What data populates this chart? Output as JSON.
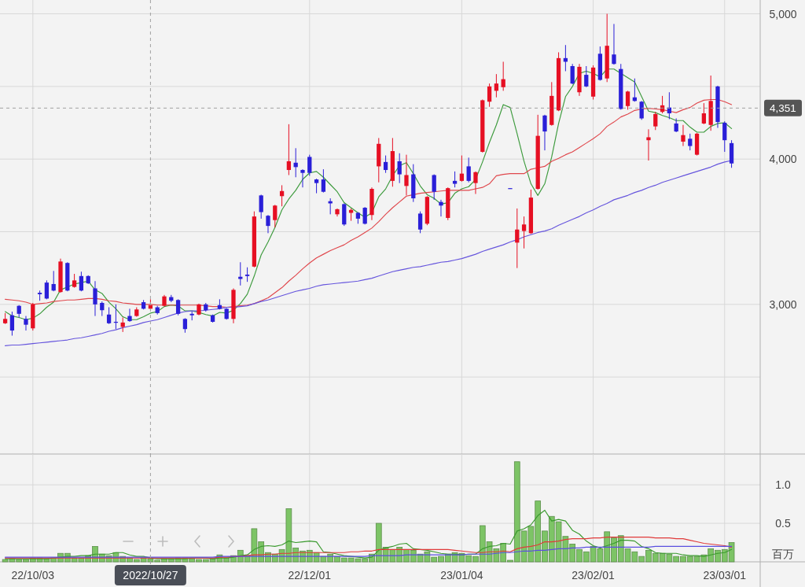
{
  "chart_data": [
    {
      "type": "candlestick",
      "categories": [
        null,
        null,
        null,
        null,
        null,
        null,
        null,
        null,
        null,
        null,
        null,
        null,
        null,
        null,
        null,
        null,
        null,
        null,
        null,
        null,
        null,
        null,
        null,
        null,
        null,
        null,
        null,
        null,
        null,
        null,
        null,
        null,
        null,
        null,
        null,
        null,
        null,
        null,
        null,
        null,
        null,
        null,
        null,
        null,
        null,
        null,
        null,
        null,
        null,
        null,
        null,
        null,
        null,
        null,
        null,
        null,
        null,
        null,
        null,
        null,
        null,
        null,
        null,
        null,
        null,
        null,
        null,
        null,
        null,
        null,
        null,
        null,
        null,
        null,
        null,
        null,
        null,
        null,
        null,
        null,
        null,
        null,
        null,
        null,
        null,
        null,
        null,
        null,
        null,
        null,
        null,
        null,
        null,
        null,
        null,
        null,
        null,
        null,
        null,
        null,
        null,
        null,
        null,
        null,
        null,
        null
      ],
      "ohlc": [
        [
          2870,
          2940,
          2865,
          2900
        ],
        [
          2925,
          2950,
          2785,
          2820
        ],
        [
          2990,
          2995,
          2910,
          2935
        ],
        [
          2900,
          2920,
          2820,
          2860
        ],
        [
          2835,
          3010,
          2820,
          3000
        ],
        [
          3080,
          3095,
          3025,
          3070
        ],
        [
          3150,
          3165,
          3035,
          3040
        ],
        [
          3140,
          3230,
          3090,
          3095
        ],
        [
          3085,
          3315,
          3080,
          3295
        ],
        [
          3285,
          3290,
          3090,
          3095
        ],
        [
          3120,
          3210,
          3115,
          3165
        ],
        [
          3195,
          3225,
          3090,
          3095
        ],
        [
          3195,
          3200,
          3140,
          3145
        ],
        [
          3110,
          3160,
          2920,
          3000
        ],
        [
          3010,
          3020,
          2920,
          2960
        ],
        [
          2930,
          2980,
          2865,
          2870
        ],
        [
          2880,
          3000,
          2830,
          2875
        ],
        [
          2845,
          2910,
          2810,
          2875
        ],
        [
          2920,
          2970,
          2880,
          2885
        ],
        [
          2920,
          2980,
          2915,
          2965
        ],
        [
          3015,
          3030,
          2965,
          2970
        ],
        [
          2970,
          3035,
          2965,
          2995
        ],
        [
          2980,
          2990,
          2930,
          2940
        ],
        [
          2990,
          3065,
          2985,
          3055
        ],
        [
          3050,
          3065,
          3015,
          3025
        ],
        [
          3030,
          3035,
          2925,
          2935
        ],
        [
          2900,
          2905,
          2805,
          2830
        ],
        [
          2935,
          2950,
          2890,
          2925
        ],
        [
          2930,
          3005,
          2925,
          3000
        ],
        [
          3000,
          3010,
          2950,
          2960
        ],
        [
          2925,
          2930,
          2875,
          2880
        ],
        [
          2995,
          3035,
          2965,
          2970
        ],
        [
          2970,
          2975,
          2895,
          2900
        ],
        [
          2900,
          3110,
          2870,
          3100
        ],
        [
          3190,
          3290,
          3130,
          3175
        ],
        [
          3205,
          3255,
          3155,
          3195
        ],
        [
          3260,
          3640,
          3255,
          3605
        ],
        [
          3750,
          3755,
          3590,
          3635
        ],
        [
          3610,
          3615,
          3490,
          3540
        ],
        [
          3580,
          3685,
          3530,
          3680
        ],
        [
          3745,
          3820,
          3675,
          3780
        ],
        [
          3925,
          4240,
          3890,
          3985
        ],
        [
          3975,
          4075,
          3875,
          3945
        ],
        [
          3925,
          3930,
          3805,
          3905
        ],
        [
          4015,
          4030,
          3885,
          3905
        ],
        [
          3860,
          3865,
          3765,
          3835
        ],
        [
          3860,
          3930,
          3770,
          3775
        ],
        [
          3710,
          3730,
          3620,
          3695
        ],
        [
          3620,
          3660,
          3605,
          3655
        ],
        [
          3690,
          3695,
          3540,
          3550
        ],
        [
          3630,
          3660,
          3575,
          3650
        ],
        [
          3630,
          3635,
          3555,
          3590
        ],
        [
          3665,
          3670,
          3550,
          3555
        ],
        [
          3615,
          3805,
          3580,
          3795
        ],
        [
          3950,
          4145,
          3840,
          4105
        ],
        [
          3980,
          4025,
          3905,
          3925
        ],
        [
          3850,
          4145,
          3810,
          4055
        ],
        [
          3985,
          4040,
          3835,
          3895
        ],
        [
          3815,
          4030,
          3750,
          3890
        ],
        [
          3895,
          3965,
          3705,
          3730
        ],
        [
          3625,
          3640,
          3490,
          3515
        ],
        [
          3555,
          3745,
          3545,
          3740
        ],
        [
          3890,
          3895,
          3720,
          3775
        ],
        [
          3705,
          3720,
          3605,
          3680
        ],
        [
          3595,
          3805,
          3580,
          3800
        ],
        [
          3850,
          3915,
          3805,
          3830
        ],
        [
          3850,
          4025,
          3845,
          3900
        ],
        [
          3950,
          4010,
          3840,
          3850
        ],
        [
          3835,
          3915,
          3760,
          3910
        ],
        [
          4050,
          4410,
          4045,
          4405
        ],
        [
          4395,
          4520,
          4360,
          4500
        ],
        [
          4470,
          4585,
          4425,
          4520
        ],
        [
          4495,
          4670,
          4470,
          4550
        ],
        [
          3800,
          3800,
          3800,
          3800
        ],
        [
          3425,
          3660,
          3250,
          3515
        ],
        [
          3505,
          3605,
          3385,
          3550
        ],
        [
          3490,
          3790,
          3485,
          3735
        ],
        [
          3795,
          4305,
          3790,
          4160
        ],
        [
          4300,
          4305,
          4060,
          4190
        ],
        [
          4235,
          4530,
          4230,
          4435
        ],
        [
          4335,
          4735,
          4330,
          4695
        ],
        [
          4695,
          4785,
          4605,
          4670
        ],
        [
          4640,
          4655,
          4515,
          4520
        ],
        [
          4460,
          4655,
          4435,
          4635
        ],
        [
          4580,
          4640,
          4495,
          4500
        ],
        [
          4430,
          4645,
          4410,
          4630
        ],
        [
          4725,
          4775,
          4540,
          4545
        ],
        [
          4555,
          5000,
          4530,
          4780
        ],
        [
          4720,
          4930,
          4650,
          4655
        ],
        [
          4620,
          4655,
          4340,
          4345
        ],
        [
          4365,
          4470,
          4340,
          4465
        ],
        [
          4425,
          4555,
          4395,
          4400
        ],
        [
          4395,
          4400,
          4270,
          4280
        ],
        [
          4130,
          4205,
          3990,
          4150
        ],
        [
          4225,
          4325,
          4200,
          4310
        ],
        [
          4325,
          4435,
          4315,
          4370
        ],
        [
          4355,
          4460,
          4275,
          4315
        ],
        [
          4245,
          4280,
          4185,
          4190
        ],
        [
          4120,
          4235,
          4090,
          4165
        ],
        [
          4140,
          4175,
          4060,
          4090
        ],
        [
          4030,
          4180,
          4025,
          4175
        ],
        [
          4245,
          4385,
          4240,
          4315
        ],
        [
          4235,
          4575,
          4195,
          4400
        ],
        [
          4500,
          4505,
          4215,
          4255
        ],
        [
          4250,
          4260,
          4050,
          4130
        ],
        [
          4110,
          4130,
          3940,
          3970
        ]
      ],
      "colors": [
        "#e60f23",
        "#2a1fd8",
        "#2a1fd8",
        "#2a1fd8",
        "#e60f23",
        "#2a1fd8",
        "#2a1fd8",
        "#2a1fd8",
        "#e60f23",
        "#2a1fd8",
        "#e60f23",
        "#2a1fd8",
        "#2a1fd8",
        "#2a1fd8",
        "#2a1fd8",
        "#2a1fd8",
        "#2a1fd8",
        "#e60f23",
        "#2a1fd8",
        "#e60f23",
        "#2a1fd8",
        "#e60f23",
        "#2a1fd8",
        "#e60f23",
        "#2a1fd8",
        "#2a1fd8",
        "#2a1fd8",
        "#2a1fd8",
        "#e60f23",
        "#2a1fd8",
        "#2a1fd8",
        "#2a1fd8",
        "#2a1fd8",
        "#e60f23",
        "#2a1fd8",
        "#2a1fd8",
        "#e60f23",
        "#2a1fd8",
        "#2a1fd8",
        "#e60f23",
        "#e60f23",
        "#e60f23",
        "#2a1fd8",
        "#2a1fd8",
        "#2a1fd8",
        "#2a1fd8",
        "#2a1fd8",
        "#2a1fd8",
        "#e60f23",
        "#2a1fd8",
        "#e60f23",
        "#2a1fd8",
        "#2a1fd8",
        "#e60f23",
        "#e60f23",
        "#2a1fd8",
        "#e60f23",
        "#2a1fd8",
        "#e60f23",
        "#2a1fd8",
        "#2a1fd8",
        "#e60f23",
        "#2a1fd8",
        "#2a1fd8",
        "#e60f23",
        "#2a1fd8",
        "#e60f23",
        "#2a1fd8",
        "#e60f23",
        "#e60f23",
        "#e60f23",
        "#e60f23",
        "#e60f23",
        "#2a1fd8",
        "#e60f23",
        "#e60f23",
        "#e60f23",
        "#e60f23",
        "#2a1fd8",
        "#e60f23",
        "#e60f23",
        "#2a1fd8",
        "#2a1fd8",
        "#e60f23",
        "#2a1fd8",
        "#e60f23",
        "#2a1fd8",
        "#e60f23",
        "#2a1fd8",
        "#2a1fd8",
        "#e60f23",
        "#2a1fd8",
        "#2a1fd8",
        "#e60f23",
        "#e60f23",
        "#e60f23",
        "#2a1fd8",
        "#2a1fd8",
        "#e60f23",
        "#2a1fd8",
        "#e60f23",
        "#e60f23",
        "#e60f23",
        "#2a1fd8",
        "#2a1fd8",
        "#2a1fd8"
      ],
      "series": [
        {
          "type": "line",
          "color": "#3c9a3c",
          "values": [
            2950,
            2920,
            2910,
            2895,
            2905,
            2935,
            2980,
            3015,
            3100,
            3120,
            3140,
            3150,
            3160,
            3100,
            3075,
            3015,
            2970,
            2915,
            2895,
            2895,
            2915,
            2940,
            2950,
            2985,
            2995,
            2990,
            2955,
            2955,
            2945,
            2930,
            2920,
            2945,
            2940,
            2960,
            3005,
            3070,
            3195,
            3340,
            3430,
            3530,
            3650,
            3725,
            3785,
            3860,
            3905,
            3915,
            3875,
            3825,
            3775,
            3700,
            3665,
            3630,
            3600,
            3630,
            3740,
            3795,
            3885,
            3955,
            3975,
            3900,
            3815,
            3755,
            3730,
            3690,
            3700,
            3765,
            3795,
            3810,
            3860,
            3980,
            4115,
            4235,
            4375,
            4355,
            4175,
            3985,
            3830,
            3750,
            3830,
            4015,
            4245,
            4430,
            4500,
            4590,
            4605,
            4590,
            4565,
            4620,
            4620,
            4590,
            4560,
            4530,
            4430,
            4330,
            4320,
            4300,
            4285,
            4265,
            4265,
            4220,
            4185,
            4185,
            4225,
            4245,
            4250,
            4210
          ]
        },
        {
          "type": "line",
          "color": "#e0474c",
          "values": [
            3035,
            3030,
            3025,
            3015,
            3000,
            3005,
            3010,
            3020,
            3025,
            3030,
            3030,
            3035,
            3040,
            3040,
            3035,
            3025,
            3020,
            3010,
            3005,
            3000,
            3000,
            3000,
            2995,
            2995,
            2995,
            2995,
            2995,
            2995,
            2995,
            2990,
            2985,
            2985,
            2980,
            2985,
            2990,
            2995,
            3005,
            3025,
            3045,
            3080,
            3115,
            3160,
            3200,
            3245,
            3285,
            3320,
            3345,
            3370,
            3390,
            3410,
            3440,
            3465,
            3495,
            3525,
            3570,
            3620,
            3665,
            3705,
            3745,
            3755,
            3765,
            3770,
            3775,
            3780,
            3785,
            3785,
            3785,
            3785,
            3795,
            3805,
            3830,
            3885,
            3895,
            3900,
            3900,
            3900,
            3930,
            3940,
            3950,
            3985,
            4005,
            4030,
            4050,
            4080,
            4110,
            4140,
            4175,
            4225,
            4255,
            4290,
            4310,
            4335,
            4345,
            4350,
            4345,
            4340,
            4330,
            4320,
            4340,
            4355,
            4385,
            4405,
            4410,
            4410,
            4395,
            4375
          ]
        },
        {
          "type": "line",
          "color": "#6655dd",
          "values": [
            2715,
            2720,
            2720,
            2725,
            2730,
            2735,
            2740,
            2745,
            2750,
            2755,
            2765,
            2770,
            2780,
            2790,
            2800,
            2815,
            2825,
            2840,
            2850,
            2860,
            2875,
            2885,
            2895,
            2910,
            2925,
            2940,
            2950,
            2955,
            2955,
            2960,
            2965,
            2970,
            2980,
            2980,
            2985,
            2990,
            3005,
            3020,
            3030,
            3045,
            3060,
            3075,
            3090,
            3100,
            3110,
            3125,
            3135,
            3140,
            3145,
            3150,
            3155,
            3160,
            3170,
            3180,
            3195,
            3210,
            3225,
            3235,
            3245,
            3255,
            3260,
            3270,
            3280,
            3290,
            3295,
            3305,
            3315,
            3330,
            3345,
            3365,
            3380,
            3395,
            3410,
            3430,
            3445,
            3465,
            3480,
            3495,
            3505,
            3520,
            3545,
            3565,
            3585,
            3605,
            3630,
            3650,
            3675,
            3695,
            3720,
            3735,
            3750,
            3770,
            3785,
            3805,
            3820,
            3840,
            3855,
            3870,
            3885,
            3900,
            3915,
            3930,
            3945,
            3965,
            3980,
            3990
          ]
        }
      ],
      "ylim": [
        1970,
        5095
      ],
      "yticks": [
        {
          "value": 2500,
          "label": null
        },
        {
          "value": 3000,
          "label": "3,000"
        },
        {
          "value": 3500,
          "label": null
        },
        {
          "value": 4000,
          "label": "4,000"
        },
        {
          "value": 4500,
          "label": null
        },
        {
          "value": 5000,
          "label": "5,000"
        }
      ],
      "grid": true,
      "tick_labels": "y",
      "ref_lines": [
        {
          "axis": "y",
          "value": 4351,
          "label": "4,351",
          "color": "#a0a0a0",
          "line_style": "dashed"
        },
        {
          "axis": "x",
          "value": "2022/10/27",
          "color": "#a0a0a0",
          "line_style": "dashed"
        }
      ]
    },
    {
      "type": "bar",
      "categories": [
        null,
        null,
        null,
        null,
        "22/10/03",
        null,
        null,
        null,
        null,
        null,
        null,
        null,
        null,
        null,
        null,
        null,
        null,
        null,
        null,
        null,
        null,
        "2022/10/27",
        null,
        null,
        null,
        null,
        null,
        null,
        null,
        null,
        null,
        null,
        null,
        null,
        null,
        null,
        null,
        null,
        null,
        null,
        null,
        null,
        null,
        null,
        "22/12/01",
        null,
        null,
        null,
        null,
        null,
        null,
        null,
        null,
        null,
        null,
        null,
        null,
        null,
        null,
        null,
        null,
        null,
        null,
        null,
        null,
        null,
        "23/01/04",
        null,
        null,
        null,
        null,
        null,
        null,
        null,
        null,
        null,
        null,
        null,
        null,
        null,
        null,
        null,
        null,
        null,
        null,
        "23/02/01",
        null,
        null,
        null,
        null,
        null,
        null,
        null,
        null,
        null,
        null,
        null,
        null,
        null,
        null,
        null,
        null,
        null,
        null,
        "23/03/01",
        null
      ],
      "series": [
        {
          "color": "#7dc466",
          "values": [
            0.03,
            0.04,
            0.03,
            0.03,
            0.05,
            0.05,
            0.04,
            0.05,
            0.11,
            0.11,
            0.05,
            0.05,
            0.08,
            0.2,
            0.1,
            0.08,
            0.12,
            0.07,
            0.05,
            0.03,
            0.05,
            0.04,
            0.02,
            0.04,
            0.04,
            0.05,
            0.05,
            0.04,
            0.03,
            0.03,
            0.04,
            0.09,
            0.05,
            0.08,
            0.15,
            0.08,
            0.43,
            0.26,
            0.12,
            0.1,
            0.16,
            0.69,
            0.18,
            0.14,
            0.15,
            0.12,
            0.07,
            0.1,
            0.07,
            0.05,
            0.05,
            0.04,
            0.04,
            0.1,
            0.5,
            0.19,
            0.16,
            0.19,
            0.16,
            0.15,
            0.1,
            0.13,
            0.06,
            0.07,
            0.1,
            0.12,
            0.11,
            0.08,
            0.07,
            0.47,
            0.26,
            0.17,
            0.24,
            0.02,
            1.3,
            0.4,
            0.46,
            0.79,
            0.4,
            0.59,
            0.52,
            0.33,
            0.23,
            0.16,
            0.13,
            0.2,
            0.17,
            0.39,
            0.31,
            0.34,
            0.17,
            0.13,
            0.07,
            0.15,
            0.11,
            0.11,
            0.1,
            0.07,
            0.07,
            0.07,
            0.07,
            0.09,
            0.17,
            0.15,
            0.16,
            0.25
          ]
        },
        {
          "type": "line",
          "color": "#3a9a2e",
          "values": [
            0.04,
            0.04,
            0.04,
            0.04,
            0.04,
            0.04,
            0.04,
            0.05,
            0.06,
            0.07,
            0.07,
            0.08,
            0.08,
            0.1,
            0.1,
            0.1,
            0.12,
            0.12,
            0.09,
            0.07,
            0.07,
            0.05,
            0.04,
            0.04,
            0.04,
            0.04,
            0.04,
            0.05,
            0.05,
            0.05,
            0.04,
            0.05,
            0.05,
            0.06,
            0.08,
            0.09,
            0.16,
            0.2,
            0.21,
            0.2,
            0.22,
            0.27,
            0.25,
            0.26,
            0.27,
            0.26,
            0.13,
            0.12,
            0.1,
            0.08,
            0.07,
            0.06,
            0.05,
            0.06,
            0.15,
            0.18,
            0.2,
            0.23,
            0.24,
            0.17,
            0.16,
            0.15,
            0.13,
            0.11,
            0.1,
            0.1,
            0.09,
            0.1,
            0.1,
            0.17,
            0.2,
            0.21,
            0.24,
            0.23,
            0.4,
            0.43,
            0.48,
            0.6,
            0.67,
            0.53,
            0.55,
            0.53,
            0.41,
            0.36,
            0.27,
            0.21,
            0.18,
            0.21,
            0.24,
            0.28,
            0.28,
            0.27,
            0.2,
            0.17,
            0.12,
            0.11,
            0.11,
            0.11,
            0.09,
            0.08,
            0.08,
            0.07,
            0.09,
            0.11,
            0.12,
            0.16
          ]
        },
        {
          "type": "line",
          "color": "#e03a3a",
          "values": [
            0.05,
            0.05,
            0.05,
            0.05,
            0.05,
            0.05,
            0.05,
            0.05,
            0.05,
            0.05,
            0.05,
            0.05,
            0.05,
            0.05,
            0.05,
            0.05,
            0.05,
            0.05,
            0.05,
            0.05,
            0.05,
            0.05,
            0.05,
            0.05,
            0.05,
            0.05,
            0.05,
            0.05,
            0.05,
            0.05,
            0.05,
            0.06,
            0.06,
            0.07,
            0.07,
            0.08,
            0.09,
            0.09,
            0.1,
            0.1,
            0.11,
            0.11,
            0.12,
            0.12,
            0.12,
            0.12,
            0.12,
            0.12,
            0.12,
            0.12,
            0.13,
            0.13,
            0.14,
            0.14,
            0.16,
            0.16,
            0.16,
            0.16,
            0.16,
            0.16,
            0.16,
            0.16,
            0.16,
            0.16,
            0.16,
            0.15,
            0.14,
            0.13,
            0.12,
            0.12,
            0.13,
            0.13,
            0.14,
            0.13,
            0.17,
            0.19,
            0.2,
            0.22,
            0.26,
            0.26,
            0.27,
            0.29,
            0.3,
            0.3,
            0.3,
            0.31,
            0.31,
            0.32,
            0.32,
            0.32,
            0.32,
            0.32,
            0.32,
            0.32,
            0.31,
            0.31,
            0.31,
            0.3,
            0.3,
            0.28,
            0.26,
            0.24,
            0.23,
            0.22,
            0.21,
            0.19
          ]
        },
        {
          "type": "line",
          "color": "#5a4fe0",
          "values": [
            0.06,
            0.06,
            0.06,
            0.06,
            0.06,
            0.06,
            0.06,
            0.06,
            0.06,
            0.06,
            0.06,
            0.06,
            0.06,
            0.06,
            0.06,
            0.06,
            0.06,
            0.06,
            0.06,
            0.06,
            0.06,
            0.06,
            0.06,
            0.06,
            0.06,
            0.06,
            0.06,
            0.06,
            0.06,
            0.06,
            0.06,
            0.07,
            0.07,
            0.07,
            0.07,
            0.07,
            0.07,
            0.07,
            0.07,
            0.07,
            0.07,
            0.07,
            0.07,
            0.07,
            0.07,
            0.07,
            0.07,
            0.07,
            0.07,
            0.07,
            0.07,
            0.07,
            0.07,
            0.08,
            0.08,
            0.08,
            0.08,
            0.08,
            0.09,
            0.09,
            0.09,
            0.09,
            0.09,
            0.09,
            0.09,
            0.09,
            0.09,
            0.1,
            0.1,
            0.1,
            0.1,
            0.11,
            0.12,
            0.12,
            0.13,
            0.14,
            0.14,
            0.15,
            0.15,
            0.16,
            0.17,
            0.17,
            0.18,
            0.18,
            0.19,
            0.19,
            0.19,
            0.19,
            0.19,
            0.19,
            0.19,
            0.19,
            0.19,
            0.19,
            0.2,
            0.2,
            0.2,
            0.2,
            0.2,
            0.2,
            0.2,
            0.2,
            0.2,
            0.2,
            0.2,
            0.2
          ]
        }
      ],
      "ylim": [
        0,
        1.4
      ],
      "yticks": [
        {
          "value": 0.5,
          "label": "0.5"
        },
        {
          "value": 1,
          "label": "1.0"
        }
      ],
      "ylabel": "百万",
      "grid": true,
      "ref_lines": [
        {
          "axis": "x",
          "value": "2022/10/27",
          "color": "#a0a0a0",
          "line_style": "dashed"
        }
      ]
    }
  ]
}
